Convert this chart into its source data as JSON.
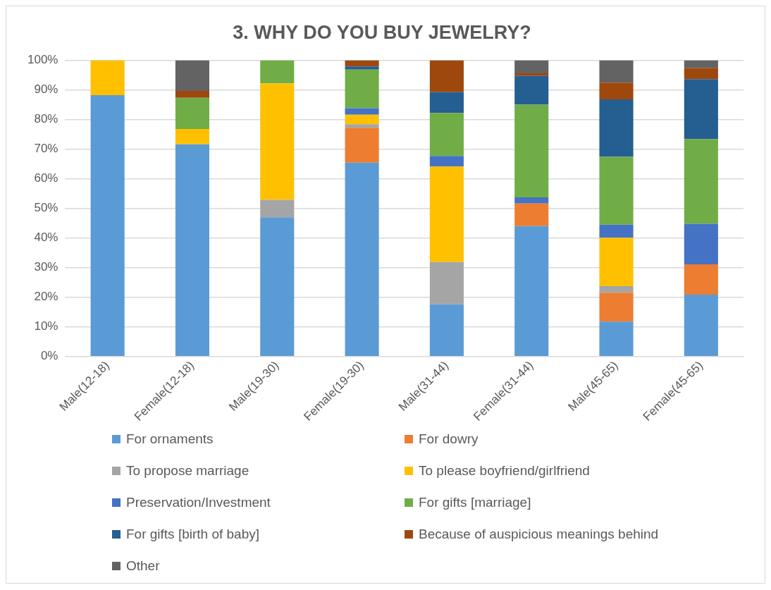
{
  "chart_data": {
    "type": "bar",
    "title": "3. WHY DO YOU BUY JEWELRY?",
    "stacked": true,
    "categories": [
      "Male(12-18)",
      "Female(12-18)",
      "Male(19-30)",
      "Female(19-30)",
      "Male(31-44)",
      "Female(31-44)",
      "Male(45-65)",
      "Female(45-65)"
    ],
    "ylim": [
      0,
      100
    ],
    "yticks": [
      {
        "value": 0,
        "label": "0%"
      },
      {
        "value": 10,
        "label": "10%"
      },
      {
        "value": 20,
        "label": "20%"
      },
      {
        "value": 30,
        "label": "30%"
      },
      {
        "value": 40,
        "label": "40%"
      },
      {
        "value": 50,
        "label": "50%"
      },
      {
        "value": 60,
        "label": "60%"
      },
      {
        "value": 70,
        "label": "70%"
      },
      {
        "value": 80,
        "label": "80%"
      },
      {
        "value": 90,
        "label": "90%"
      },
      {
        "value": 100,
        "label": "100%"
      }
    ],
    "grid": "y",
    "legend": "bottom",
    "series": [
      {
        "name": "For ornaments",
        "color": "#5b9bd5",
        "values": [
          88.2,
          71.6,
          47.0,
          65.4,
          17.6,
          44.0,
          11.8,
          20.9
        ]
      },
      {
        "name": "For dowry",
        "color": "#ed7d31",
        "values": [
          0,
          0,
          0,
          11.8,
          0,
          7.6,
          9.7,
          10.2
        ]
      },
      {
        "name": "To propose marriage",
        "color": "#a5a5a5",
        "values": [
          0,
          0,
          5.9,
          1.2,
          14.3,
          0,
          2.2,
          0
        ]
      },
      {
        "name": "To please boyfriend/girlfriend",
        "color": "#ffc000",
        "values": [
          11.8,
          5.2,
          39.3,
          3.2,
          32.2,
          0,
          16.4,
          0
        ]
      },
      {
        "name": "Preservation/Investment",
        "color": "#4472c4",
        "values": [
          0,
          0,
          0,
          2.2,
          3.6,
          2.1,
          4.4,
          13.7
        ]
      },
      {
        "name": "For gifts [marriage]",
        "color": "#70ad47",
        "values": [
          0,
          10.5,
          7.8,
          13.0,
          14.5,
          31.3,
          22.9,
          28.6
        ]
      },
      {
        "name": "For gifts [birth of baby]",
        "color": "#255e91",
        "values": [
          0,
          0,
          0,
          1.1,
          7.0,
          9.7,
          19.4,
          20.2
        ]
      },
      {
        "name": "Because of auspicious meanings behind",
        "color": "#9e480e",
        "values": [
          0,
          2.3,
          0,
          2.1,
          10.8,
          0.9,
          5.6,
          3.7
        ]
      },
      {
        "name": "Other",
        "color": "#636363",
        "values": [
          0,
          10.4,
          0,
          0,
          0,
          4.4,
          7.6,
          2.7
        ]
      }
    ]
  }
}
